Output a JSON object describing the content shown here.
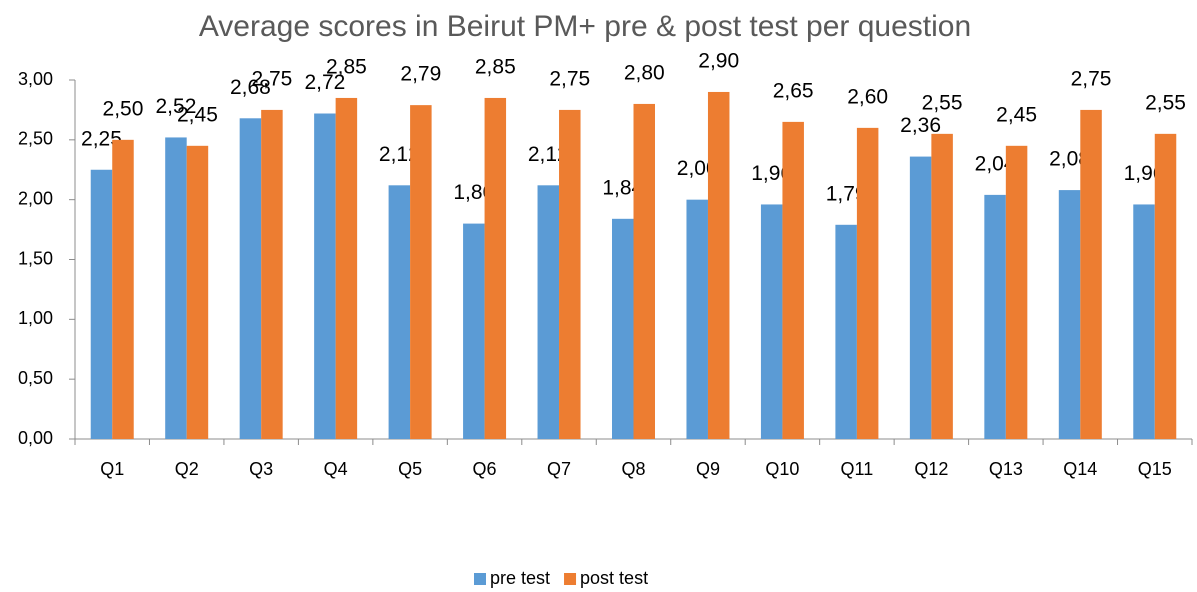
{
  "chart_data": {
    "type": "bar",
    "title": "Average scores in Beirut PM+ pre & post test per question",
    "categories": [
      "Q1",
      "Q2",
      "Q3",
      "Q4",
      "Q5",
      "Q6",
      "Q7",
      "Q8",
      "Q9",
      "Q10",
      "Q11",
      "Q12",
      "Q13",
      "Q14",
      "Q15"
    ],
    "series": [
      {
        "name": "pre test",
        "color": "#5b9bd5",
        "values": [
          2.25,
          2.52,
          2.68,
          2.72,
          2.12,
          1.8,
          2.12,
          1.84,
          2.0,
          1.96,
          1.79,
          2.36,
          2.04,
          2.08,
          1.96
        ],
        "value_labels": [
          "2,25",
          "2,52",
          "2,68",
          "2,72",
          "2,12",
          "1,80",
          "2,12",
          "1,84",
          "2,00",
          "1,96",
          "1,79",
          "2,36",
          "2,04",
          "2,08",
          "1,96"
        ]
      },
      {
        "name": "post test",
        "color": "#ed7d31",
        "values": [
          2.5,
          2.45,
          2.75,
          2.85,
          2.79,
          2.85,
          2.75,
          2.8,
          2.9,
          2.65,
          2.6,
          2.55,
          2.45,
          2.75,
          2.55
        ],
        "value_labels": [
          "2,50",
          "2,45",
          "2,75",
          "2,85",
          "2,79",
          "2,85",
          "2,75",
          "2,80",
          "2,90",
          "2,65",
          "2,60",
          "2,55",
          "2,45",
          "2,75",
          "2,55"
        ]
      }
    ],
    "ylim": [
      0,
      3
    ],
    "yticks": [
      {
        "value": 0,
        "label": "0,00"
      },
      {
        "value": 0.5,
        "label": "0,50"
      },
      {
        "value": 1,
        "label": "1,00"
      },
      {
        "value": 1.5,
        "label": "1,50"
      },
      {
        "value": 2,
        "label": "2,00"
      },
      {
        "value": 2.5,
        "label": "2,50"
      },
      {
        "value": 3,
        "label": "3,00"
      }
    ],
    "grid": false,
    "legend": "bottom"
  }
}
